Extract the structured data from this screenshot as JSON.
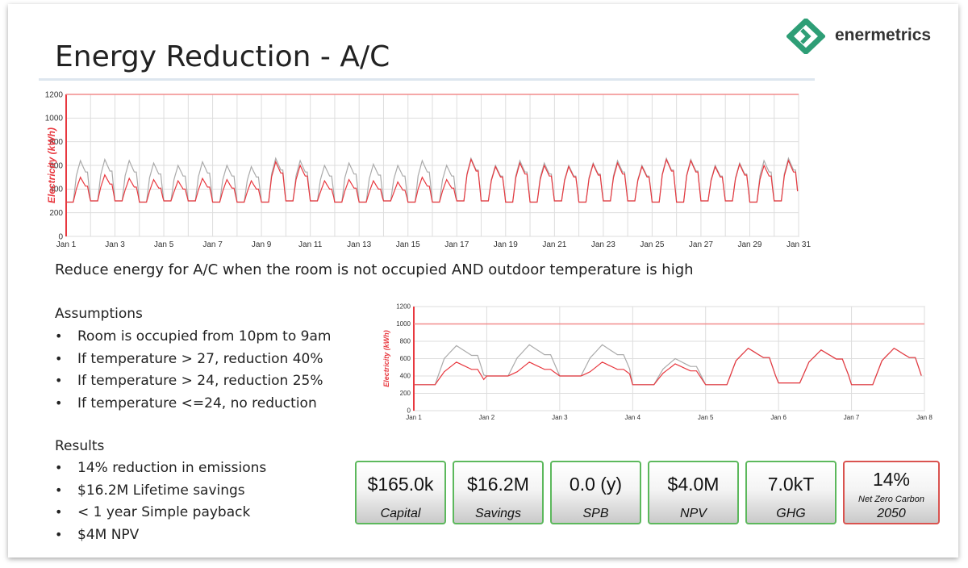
{
  "slide": {
    "title": "Energy Reduction - A/C",
    "brand": "enermetrics",
    "subtitle": "Reduce energy for A/C when the room is not occupied AND outdoor temperature is high",
    "assumptions_heading": "Assumptions",
    "assumptions": [
      "Room is occupied from 10pm to 9am",
      "If temperature > 27, reduction 40%",
      "If temperature > 24, reduction 25%",
      "If temperature <=24, no reduction"
    ],
    "results_heading": "Results",
    "results": [
      "14% reduction in emissions",
      "$16.2M Lifetime savings",
      "< 1 year Simple payback",
      "$4M NPV"
    ]
  },
  "kpis": [
    {
      "value": "$165.0k",
      "label": "Capital",
      "status": "green"
    },
    {
      "value": "$16.2M",
      "label": "Savings",
      "status": "green"
    },
    {
      "value": "0.0 (y)",
      "label": "SPB",
      "status": "green"
    },
    {
      "value": "$4.0M",
      "label": "NPV",
      "status": "green"
    },
    {
      "value": "7.0kT",
      "label": "GHG",
      "status": "green"
    },
    {
      "value": "14%",
      "label_line1": "Net Zero Carbon",
      "label_line2": "2050",
      "status": "red"
    }
  ],
  "colors": {
    "baseline": "#aaaaaa",
    "reduced": "#e8383f",
    "threshold": "#f28c8c",
    "kpi_ok": "#5cb85c",
    "kpi_bad": "#d9534f",
    "brand": "#2e9e76"
  },
  "chart_data": [
    {
      "type": "line",
      "title": "",
      "xlabel": "",
      "ylabel": "Electricity (kWh)",
      "ylim": [
        0,
        1200
      ],
      "yticks": [
        "0",
        "200",
        "400",
        "600",
        "800",
        "1000",
        "1200"
      ],
      "xlim": [
        1,
        31
      ],
      "xticks": [
        "Jan 1",
        "Jan 3",
        "Jan 5",
        "Jan 7",
        "Jan 9",
        "Jan 11",
        "Jan 13",
        "Jan 15",
        "Jan 17",
        "Jan 19",
        "Jan 21",
        "Jan 23",
        "Jan 25",
        "Jan 27",
        "Jan 29",
        "Jan 31"
      ],
      "threshold": 1200,
      "grid": true,
      "days": 30,
      "series": [
        {
          "daily_min": [
            290,
            300,
            300,
            290,
            300,
            300,
            290,
            290,
            290,
            300,
            300,
            290,
            290,
            300,
            290,
            290,
            300,
            300,
            290,
            290,
            300,
            290,
            300,
            300,
            290,
            290,
            300,
            300,
            290,
            300
          ],
          "daily_peak": [
            640,
            650,
            640,
            620,
            600,
            630,
            600,
            590,
            660,
            640,
            600,
            620,
            610,
            600,
            640,
            600,
            660,
            600,
            640,
            620,
            600,
            620,
            640,
            600,
            660,
            650,
            600,
            620,
            640,
            660
          ]
        },
        {
          "daily_peak": [
            500,
            520,
            490,
            480,
            470,
            490,
            480,
            470,
            630,
            600,
            470,
            480,
            470,
            460,
            500,
            480,
            650,
            590,
            620,
            600,
            590,
            610,
            620,
            590,
            650,
            640,
            590,
            610,
            600,
            640
          ]
        }
      ]
    },
    {
      "type": "line",
      "title": "",
      "xlabel": "",
      "ylabel": "Electricity (kWh)",
      "ylim": [
        0,
        1200
      ],
      "yticks": [
        "0",
        "200",
        "400",
        "600",
        "800",
        "1000",
        "1200"
      ],
      "xlim": [
        1,
        8
      ],
      "xticks": [
        "Jan 1",
        "Jan 2",
        "Jan 3",
        "Jan 4",
        "Jan 5",
        "Jan 6",
        "Jan 7",
        "Jan 8"
      ],
      "threshold": 1000,
      "grid": true,
      "days": 7,
      "series": [
        {
          "daily_min": [
            300,
            400,
            400,
            300,
            300,
            320,
            300
          ],
          "daily_peak": [
            750,
            760,
            760,
            600,
            720,
            700,
            720
          ]
        },
        {
          "daily_peak": [
            560,
            560,
            560,
            540,
            720,
            700,
            720
          ]
        }
      ]
    }
  ]
}
